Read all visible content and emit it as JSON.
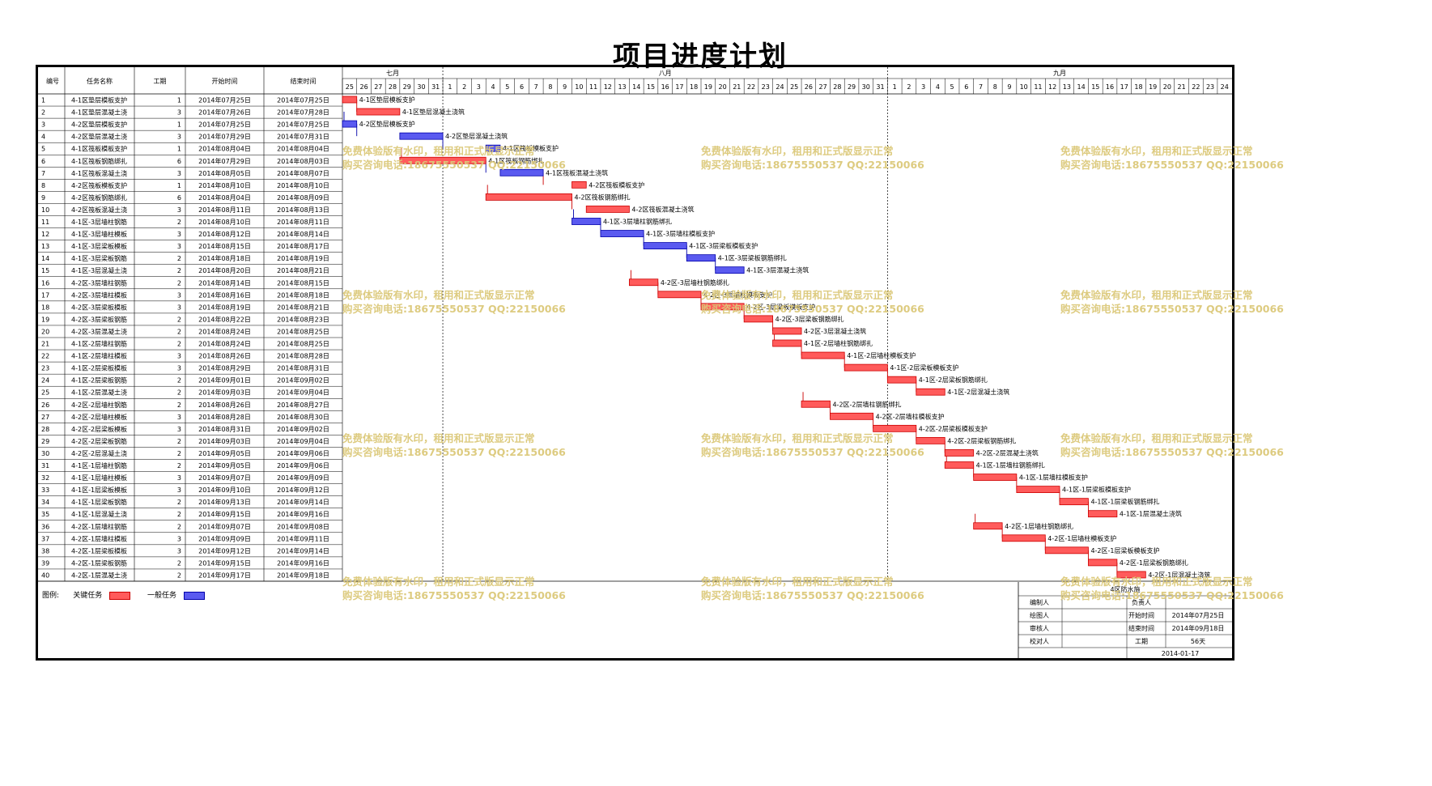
{
  "page_title": "项目进度计划",
  "headers": {
    "no": "编号",
    "name": "任务名称",
    "dur": "工期",
    "start": "开始时间",
    "end": "结束时间"
  },
  "months": [
    {
      "label": "七月",
      "days": [
        "25",
        "26",
        "27",
        "28",
        "29",
        "30",
        "31"
      ]
    },
    {
      "label": "八月",
      "days": [
        "1",
        "2",
        "3",
        "4",
        "5",
        "6",
        "7",
        "8",
        "9",
        "10",
        "11",
        "12",
        "13",
        "14",
        "15",
        "16",
        "17",
        "18",
        "19",
        "20",
        "21",
        "22",
        "23",
        "24",
        "25",
        "26",
        "27",
        "28",
        "29",
        "30",
        "31"
      ]
    },
    {
      "label": "九月",
      "days": [
        "1",
        "2",
        "3",
        "4",
        "5",
        "6",
        "7",
        "8",
        "9",
        "10",
        "11",
        "12",
        "13",
        "14",
        "15",
        "16",
        "17",
        "18",
        "19",
        "20",
        "21",
        "22",
        "23",
        "24"
      ]
    }
  ],
  "tasks": [
    {
      "no": "1",
      "name": "4-1区垫层模板支护",
      "dur": "1",
      "start": "2014年07月25日",
      "end": "2014年07月25日",
      "s": 0,
      "d": 1,
      "c": "critical",
      "label": "4-1区垫层模板支护"
    },
    {
      "no": "2",
      "name": "4-1区垫层混凝土浇",
      "dur": "3",
      "start": "2014年07月26日",
      "end": "2014年07月28日",
      "s": 1,
      "d": 3,
      "c": "critical",
      "label": "4-1区垫层混凝土浇筑"
    },
    {
      "no": "3",
      "name": "4-2区垫层模板支护",
      "dur": "1",
      "start": "2014年07月25日",
      "end": "2014年07月25日",
      "s": 0,
      "d": 1,
      "c": "general",
      "label": "4-2区垫层模板支护"
    },
    {
      "no": "4",
      "name": "4-2区垫层混凝土浇",
      "dur": "3",
      "start": "2014年07月29日",
      "end": "2014年07月31日",
      "s": 4,
      "d": 3,
      "c": "general",
      "label": "4-2区垫层混凝土浇筑"
    },
    {
      "no": "5",
      "name": "4-1区筏板模板支护",
      "dur": "1",
      "start": "2014年08月04日",
      "end": "2014年08月04日",
      "s": 10,
      "d": 1,
      "c": "general",
      "label": "4-1区筏板模板支护"
    },
    {
      "no": "6",
      "name": "4-1区筏板钢筋绑扎",
      "dur": "6",
      "start": "2014年07月29日",
      "end": "2014年08月03日",
      "s": 4,
      "d": 6,
      "c": "critical",
      "label": "4-1区筏板钢筋绑扎"
    },
    {
      "no": "7",
      "name": "4-1区筏板混凝土浇",
      "dur": "3",
      "start": "2014年08月05日",
      "end": "2014年08月07日",
      "s": 11,
      "d": 3,
      "c": "general",
      "label": "4-1区筏板混凝土浇筑"
    },
    {
      "no": "8",
      "name": "4-2区筏板模板支护",
      "dur": "1",
      "start": "2014年08月10日",
      "end": "2014年08月10日",
      "s": 16,
      "d": 1,
      "c": "critical",
      "label": "4-2区筏板模板支护"
    },
    {
      "no": "9",
      "name": "4-2区筏板钢筋绑扎",
      "dur": "6",
      "start": "2014年08月04日",
      "end": "2014年08月09日",
      "s": 10,
      "d": 6,
      "c": "critical",
      "label": "4-2区筏板钢筋绑扎"
    },
    {
      "no": "10",
      "name": "4-2区筏板混凝土浇",
      "dur": "3",
      "start": "2014年08月11日",
      "end": "2014年08月13日",
      "s": 17,
      "d": 3,
      "c": "critical",
      "label": "4-2区筏板混凝土浇筑"
    },
    {
      "no": "11",
      "name": "4-1区-3层墙柱钢筋",
      "dur": "2",
      "start": "2014年08月10日",
      "end": "2014年08月11日",
      "s": 16,
      "d": 2,
      "c": "general",
      "label": "4-1区-3层墙柱钢筋绑扎"
    },
    {
      "no": "12",
      "name": "4-1区-3层墙柱模板",
      "dur": "3",
      "start": "2014年08月12日",
      "end": "2014年08月14日",
      "s": 18,
      "d": 3,
      "c": "general",
      "label": "4-1区-3层墙柱模板支护"
    },
    {
      "no": "13",
      "name": "4-1区-3层梁板模板",
      "dur": "3",
      "start": "2014年08月15日",
      "end": "2014年08月17日",
      "s": 21,
      "d": 3,
      "c": "general",
      "label": "4-1区-3层梁板模板支护"
    },
    {
      "no": "14",
      "name": "4-1区-3层梁板钢筋",
      "dur": "2",
      "start": "2014年08月18日",
      "end": "2014年08月19日",
      "s": 24,
      "d": 2,
      "c": "general",
      "label": "4-1区-3层梁板钢筋绑扎"
    },
    {
      "no": "15",
      "name": "4-1区-3层混凝土浇",
      "dur": "2",
      "start": "2014年08月20日",
      "end": "2014年08月21日",
      "s": 26,
      "d": 2,
      "c": "general",
      "label": "4-1区-3层混凝土浇筑"
    },
    {
      "no": "16",
      "name": "4-2区-3层墙柱钢筋",
      "dur": "2",
      "start": "2014年08月14日",
      "end": "2014年08月15日",
      "s": 20,
      "d": 2,
      "c": "critical",
      "label": "4-2区-3层墙柱钢筋绑扎"
    },
    {
      "no": "17",
      "name": "4-2区-3层墙柱模板",
      "dur": "3",
      "start": "2014年08月16日",
      "end": "2014年08月18日",
      "s": 22,
      "d": 3,
      "c": "critical",
      "label": "4-2区-3层墙柱模板支护"
    },
    {
      "no": "18",
      "name": "4-2区-3层梁板模板",
      "dur": "3",
      "start": "2014年08月19日",
      "end": "2014年08月21日",
      "s": 25,
      "d": 3,
      "c": "critical",
      "label": "4-2区-3层梁板模板支护"
    },
    {
      "no": "19",
      "name": "4-2区-3层梁板钢筋",
      "dur": "2",
      "start": "2014年08月22日",
      "end": "2014年08月23日",
      "s": 28,
      "d": 2,
      "c": "critical",
      "label": "4-2区-3层梁板钢筋绑扎"
    },
    {
      "no": "20",
      "name": "4-2区-3层混凝土浇",
      "dur": "2",
      "start": "2014年08月24日",
      "end": "2014年08月25日",
      "s": 30,
      "d": 2,
      "c": "critical",
      "label": "4-2区-3层混凝土浇筑"
    },
    {
      "no": "21",
      "name": "4-1区-2层墙柱钢筋",
      "dur": "2",
      "start": "2014年08月24日",
      "end": "2014年08月25日",
      "s": 30,
      "d": 2,
      "c": "critical",
      "label": "4-1区-2层墙柱钢筋绑扎"
    },
    {
      "no": "22",
      "name": "4-1区-2层墙柱模板",
      "dur": "3",
      "start": "2014年08月26日",
      "end": "2014年08月28日",
      "s": 32,
      "d": 3,
      "c": "critical",
      "label": "4-1区-2层墙柱模板支护"
    },
    {
      "no": "23",
      "name": "4-1区-2层梁板模板",
      "dur": "3",
      "start": "2014年08月29日",
      "end": "2014年08月31日",
      "s": 35,
      "d": 3,
      "c": "critical",
      "label": "4-1区-2层梁板模板支护"
    },
    {
      "no": "24",
      "name": "4-1区-2层梁板钢筋",
      "dur": "2",
      "start": "2014年09月01日",
      "end": "2014年09月02日",
      "s": 38,
      "d": 2,
      "c": "critical",
      "label": "4-1区-2层梁板钢筋绑扎"
    },
    {
      "no": "25",
      "name": "4-1区-2层混凝土浇",
      "dur": "2",
      "start": "2014年09月03日",
      "end": "2014年09月04日",
      "s": 40,
      "d": 2,
      "c": "critical",
      "label": "4-1区-2层混凝土浇筑"
    },
    {
      "no": "26",
      "name": "4-2区-2层墙柱钢筋",
      "dur": "2",
      "start": "2014年08月26日",
      "end": "2014年08月27日",
      "s": 32,
      "d": 2,
      "c": "critical",
      "label": "4-2区-2层墙柱钢筋绑扎"
    },
    {
      "no": "27",
      "name": "4-2区-2层墙柱模板",
      "dur": "3",
      "start": "2014年08月28日",
      "end": "2014年08月30日",
      "s": 34,
      "d": 3,
      "c": "critical",
      "label": "4-2区-2层墙柱模板支护"
    },
    {
      "no": "28",
      "name": "4-2区-2层梁板模板",
      "dur": "3",
      "start": "2014年08月31日",
      "end": "2014年09月02日",
      "s": 37,
      "d": 3,
      "c": "critical",
      "label": "4-2区-2层梁板模板支护"
    },
    {
      "no": "29",
      "name": "4-2区-2层梁板钢筋",
      "dur": "2",
      "start": "2014年09月03日",
      "end": "2014年09月04日",
      "s": 40,
      "d": 2,
      "c": "critical",
      "label": "4-2区-2层梁板钢筋绑扎"
    },
    {
      "no": "30",
      "name": "4-2区-2层混凝土浇",
      "dur": "2",
      "start": "2014年09月05日",
      "end": "2014年09月06日",
      "s": 42,
      "d": 2,
      "c": "critical",
      "label": "4-2区-2层混凝土浇筑"
    },
    {
      "no": "31",
      "name": "4-1区-1层墙柱钢筋",
      "dur": "2",
      "start": "2014年09月05日",
      "end": "2014年09月06日",
      "s": 42,
      "d": 2,
      "c": "critical",
      "label": "4-1区-1层墙柱钢筋绑扎"
    },
    {
      "no": "32",
      "name": "4-1区-1层墙柱模板",
      "dur": "3",
      "start": "2014年09月07日",
      "end": "2014年09月09日",
      "s": 44,
      "d": 3,
      "c": "critical",
      "label": "4-1区-1层墙柱模板支护"
    },
    {
      "no": "33",
      "name": "4-1区-1层梁板模板",
      "dur": "3",
      "start": "2014年09月10日",
      "end": "2014年09月12日",
      "s": 47,
      "d": 3,
      "c": "critical",
      "label": "4-1区-1层梁板模板支护"
    },
    {
      "no": "34",
      "name": "4-1区-1层梁板钢筋",
      "dur": "2",
      "start": "2014年09月13日",
      "end": "2014年09月14日",
      "s": 50,
      "d": 2,
      "c": "critical",
      "label": "4-1区-1层梁板钢筋绑扎"
    },
    {
      "no": "35",
      "name": "4-1区-1层混凝土浇",
      "dur": "2",
      "start": "2014年09月15日",
      "end": "2014年09月16日",
      "s": 52,
      "d": 2,
      "c": "critical",
      "label": "4-1区-1层混凝土浇筑"
    },
    {
      "no": "36",
      "name": "4-2区-1层墙柱钢筋",
      "dur": "2",
      "start": "2014年09月07日",
      "end": "2014年09月08日",
      "s": 44,
      "d": 2,
      "c": "critical",
      "label": "4-2区-1层墙柱钢筋绑扎"
    },
    {
      "no": "37",
      "name": "4-2区-1层墙柱模板",
      "dur": "3",
      "start": "2014年09月09日",
      "end": "2014年09月11日",
      "s": 46,
      "d": 3,
      "c": "critical",
      "label": "4-2区-1层墙柱模板支护"
    },
    {
      "no": "38",
      "name": "4-2区-1层梁板模板",
      "dur": "3",
      "start": "2014年09月12日",
      "end": "2014年09月14日",
      "s": 49,
      "d": 3,
      "c": "critical",
      "label": "4-2区-1层梁板模板支护"
    },
    {
      "no": "39",
      "name": "4-2区-1层梁板钢筋",
      "dur": "2",
      "start": "2014年09月15日",
      "end": "2014年09月16日",
      "s": 52,
      "d": 2,
      "c": "critical",
      "label": "4-2区-1层梁板钢筋绑扎"
    },
    {
      "no": "40",
      "name": "4-2区-1层混凝土浇",
      "dur": "2",
      "start": "2014年09月17日",
      "end": "2014年09月18日",
      "s": 54,
      "d": 2,
      "c": "critical",
      "label": "4-2区-1层混凝土浇筑"
    }
  ],
  "legend": {
    "title": "图例:",
    "critical": "关键任务",
    "general": "一般任务"
  },
  "colors": {
    "critical": "#ff5b5b",
    "general": "#5a5af0",
    "critical_border": "#cc0000",
    "general_border": "#0000aa",
    "watermark": "#dcc97a"
  },
  "watermark": {
    "line1": "免费体验版有水印，租用和正式版显示正常",
    "line2": "购买咨询电话:18675550537 QQ:22150066"
  },
  "footer": {
    "figure_no": "4区防水施",
    "rows": [
      {
        "l": "编制人",
        "v": "",
        "l2": "负责人",
        "v2": ""
      },
      {
        "l": "绘图人",
        "v": "",
        "l2": "开始时间",
        "v2": "2014年07月25日"
      },
      {
        "l": "审核人",
        "v": "",
        "l2": "结束时间",
        "v2": "2014年09月18日"
      },
      {
        "l": "校对人",
        "v": "",
        "l2": "工期",
        "v2": "56天"
      }
    ],
    "date": "2014-01-17"
  },
  "chart_data": {
    "type": "gantt",
    "title": "项目进度计划",
    "x_range": [
      "2014-07-25",
      "2014-09-24"
    ],
    "series_colors": {
      "关键任务": "#ff5b5b",
      "一般任务": "#5a5af0"
    }
  }
}
